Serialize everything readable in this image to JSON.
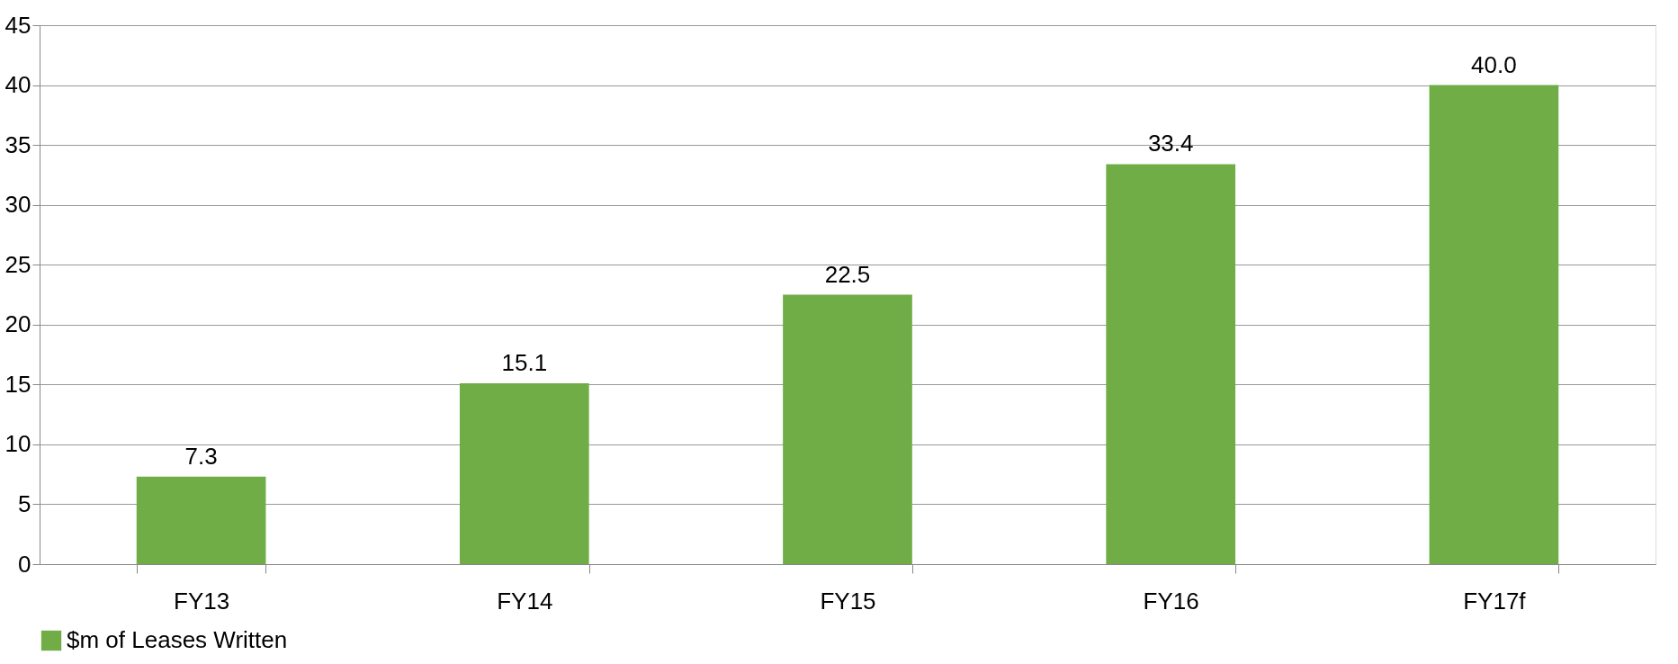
{
  "chart_data": {
    "type": "bar",
    "categories": [
      "FY13",
      "FY14",
      "FY15",
      "FY16",
      "FY17f"
    ],
    "series": [
      {
        "name": "$m of Leases Written",
        "color": "#70ad47",
        "values": [
          7.3,
          15.1,
          22.5,
          33.4,
          40.0
        ],
        "value_labels": [
          "7.3",
          "15.1",
          "22.5",
          "33.4",
          "40.0"
        ]
      }
    ],
    "ylim": [
      0,
      45
    ],
    "yticks": [
      0,
      5,
      10,
      15,
      20,
      25,
      30,
      35,
      40,
      45
    ],
    "grid": "y",
    "legend": "bottom"
  }
}
